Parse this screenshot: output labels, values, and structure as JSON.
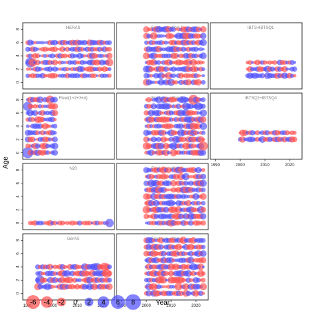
{
  "chart_data": {
    "type": "scatter",
    "description_style": "bubble",
    "xlabel": "Year",
    "ylabel": "Age",
    "xlim": [
      1988,
      2025
    ],
    "ylim": [
      -1,
      9
    ],
    "x_ticks": [
      1990,
      2000,
      2010,
      2020
    ],
    "y_ticks": [
      0,
      2,
      4,
      6,
      8
    ],
    "colors": {
      "negative": "#ff4d4d",
      "positive": "#4d4dff"
    },
    "legend": {
      "placement": "bottom-left",
      "values": [
        -6,
        -4,
        -2,
        0,
        2,
        4,
        6,
        8
      ],
      "labels": [
        "-6",
        "-4",
        "-2",
        "0",
        "2",
        "4",
        "6",
        "8"
      ]
    },
    "panels": [
      {
        "title": "HERAS",
        "row": 0,
        "col": 0,
        "ages": [
          1,
          2,
          3,
          4,
          5,
          6
        ],
        "years": [
          1990,
          2023
        ],
        "seed": 11,
        "amp": 1.4,
        "big": [
          {
            "year": 1991,
            "age": 3,
            "value": 6
          },
          {
            "year": 1992,
            "age": 3,
            "value": -4
          },
          {
            "year": 2023,
            "age": 3,
            "value": -3
          }
        ]
      },
      {
        "title": "Fleet w.o. effort 1",
        "row": 0,
        "col": 1,
        "ages": [
          0,
          1,
          2,
          3,
          4,
          5,
          6,
          7,
          8
        ],
        "years": [
          2000,
          2023
        ],
        "seed": 23,
        "amp": 2.2,
        "big": []
      },
      {
        "title": "IBTS+IBTSQ1",
        "row": 0,
        "col": 2,
        "ages": [
          1,
          2,
          3
        ],
        "years": [
          2003,
          2022
        ],
        "seed": 37,
        "amp": 1.6,
        "big": []
      },
      {
        "title": "Fleet(1+2+3+4)",
        "row": 1,
        "col": 0,
        "ages": [
          0,
          1,
          2,
          3,
          4,
          5,
          6,
          7,
          8
        ],
        "years": [
          1990,
          2001
        ],
        "seed": 41,
        "amp": 2.0,
        "big": [
          {
            "year": 1990,
            "age": 0,
            "value": 8
          },
          {
            "year": 1990,
            "age": 7,
            "value": 5
          },
          {
            "year": 1999,
            "age": 8,
            "value": -4
          }
        ]
      },
      {
        "title": "Fleet w.o. effort 2",
        "row": 1,
        "col": 1,
        "ages": [
          0,
          1,
          2,
          3,
          4,
          5,
          6,
          7,
          8
        ],
        "years": [
          2000,
          2023
        ],
        "seed": 53,
        "amp": 2.4,
        "big": [
          {
            "year": 2019,
            "age": 8,
            "value": -6
          },
          {
            "year": 2023,
            "age": 1,
            "value": -5
          }
        ]
      },
      {
        "title": "IBTSQ3+IBTSQ4",
        "row": 1,
        "col": 2,
        "ages": [
          2,
          3
        ],
        "years": [
          2000,
          2022
        ],
        "seed": 61,
        "amp": 1.8,
        "big": []
      },
      {
        "title": "N20",
        "row": 2,
        "col": 0,
        "ages": [
          0
        ],
        "years": [
          1991,
          2023
        ],
        "seed": 71,
        "amp": 1.2,
        "big": [
          {
            "year": 2023,
            "age": 0,
            "value": 4
          }
        ]
      },
      {
        "title": "Fleet w.o. effort 3",
        "row": 2,
        "col": 1,
        "ages": [
          0,
          1,
          2,
          3,
          4,
          5,
          6,
          7,
          8
        ],
        "years": [
          2000,
          2023
        ],
        "seed": 83,
        "amp": 2.2,
        "big": []
      },
      {
        "title": "GerAS",
        "row": 3,
        "col": 0,
        "ages": [
          1,
          2,
          3,
          4
        ],
        "years": [
          1994,
          2023
        ],
        "seed": 97,
        "amp": 2.4,
        "big": [
          {
            "year": 1995,
            "age": 2,
            "value": 5
          },
          {
            "year": 2021,
            "age": 4,
            "value": -4
          },
          {
            "year": 2022,
            "age": 3,
            "value": -4
          }
        ]
      },
      {
        "title": "Fleet w.o. effort 4",
        "row": 3,
        "col": 1,
        "ages": [
          0,
          1,
          2,
          3,
          4,
          5,
          6,
          7,
          8
        ],
        "years": [
          2000,
          2023
        ],
        "seed": 101,
        "amp": 2.3,
        "big": []
      }
    ]
  }
}
